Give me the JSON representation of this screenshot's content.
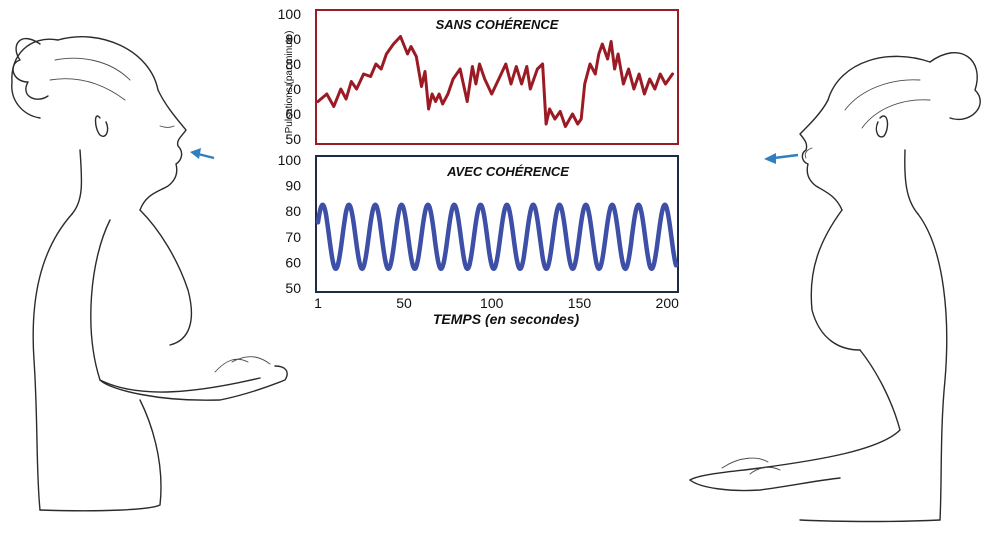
{
  "colors": {
    "top_series": "#9b1b24",
    "top_frame": "#9b1b24",
    "bottom_series": "#3d4fa6",
    "bottom_frame": "#1f2a44",
    "arrow": "#2f7fc1"
  },
  "icons": {
    "left_person": "woman-breathing-in-profile-illustration",
    "right_person": "woman-breathing-out-profile-illustration",
    "left_arrow": "breath-in-arrow-icon",
    "right_arrow": "breath-out-arrow-icon"
  },
  "chart_data": [
    {
      "type": "line",
      "title": "SANS COHÉRENCE",
      "ylabel": "Pulsations (par minute)",
      "ylim": [
        50,
        100
      ],
      "yticks": [
        "100",
        "90",
        "80",
        "70",
        "60",
        "50"
      ],
      "xlim": [
        1,
        205
      ],
      "grid": false,
      "series": [
        {
          "x": [
            1,
            6,
            10,
            14,
            17,
            20,
            23,
            27,
            31,
            34,
            37,
            40,
            44,
            48,
            52,
            54,
            57,
            60,
            62,
            64,
            66,
            68,
            70,
            72,
            75,
            78,
            82,
            86,
            89,
            91,
            93,
            96,
            100,
            104,
            108,
            111,
            114,
            117,
            120,
            122,
            126,
            129,
            131,
            133,
            136,
            139,
            142,
            146,
            149,
            151,
            153,
            156,
            159,
            161,
            163,
            166,
            168,
            170,
            172,
            175,
            178,
            181,
            184,
            187,
            190,
            193,
            196,
            199,
            203
          ],
          "values": [
            65,
            68,
            63,
            70,
            66,
            73,
            70,
            76,
            75,
            80,
            78,
            84,
            88,
            91,
            84,
            87,
            83,
            71,
            77,
            62,
            68,
            65,
            68,
            64,
            68,
            74,
            78,
            65,
            79,
            72,
            80,
            74,
            68,
            74,
            80,
            72,
            79,
            72,
            79,
            70,
            78,
            80,
            56,
            62,
            58,
            61,
            55,
            60,
            56,
            58,
            72,
            80,
            76,
            84,
            88,
            82,
            89,
            78,
            84,
            72,
            78,
            70,
            76,
            68,
            74,
            70,
            76,
            72,
            76
          ]
        }
      ]
    },
    {
      "type": "line",
      "title": "AVEC COHÉRENCE",
      "xlabel": "TEMPS (en secondes)",
      "ylim": [
        50,
        100
      ],
      "yticks": [
        "100",
        "90",
        "80",
        "70",
        "60",
        "50"
      ],
      "xlim": [
        1,
        205
      ],
      "xticks": [
        {
          "value": 1,
          "label": "1"
        },
        {
          "value": 50,
          "label": "50"
        },
        {
          "value": 100,
          "label": "100"
        },
        {
          "value": 150,
          "label": "150"
        },
        {
          "value": 200,
          "label": "200"
        }
      ],
      "grid": false,
      "series": [
        {
          "sine": {
            "center": 70,
            "amplitude": 12.5,
            "period": 15,
            "phase_start": 1
          }
        }
      ]
    }
  ]
}
